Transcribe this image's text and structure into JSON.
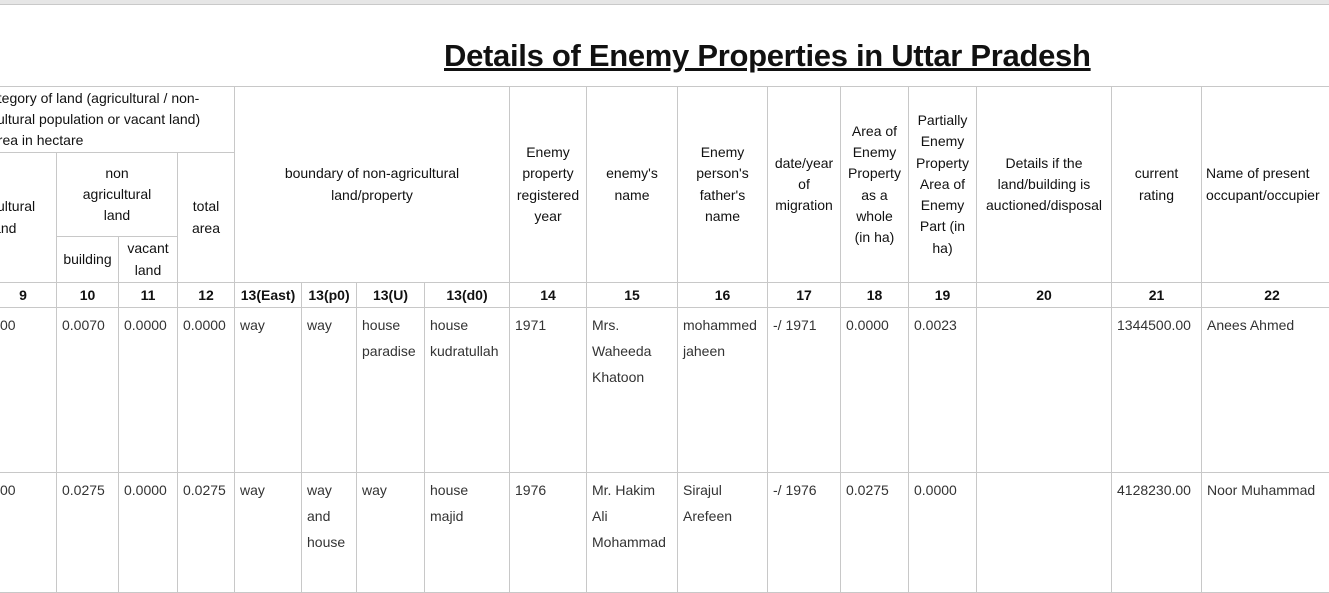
{
  "title": "Details of Enemy Properties in Uttar Pradesh",
  "headers": {
    "category": "ategory of land (agricultural / non-\ncultural population or vacant land)\narea in hectare",
    "agricultural_land": "cultural\nland",
    "non_agricultural_land": "non\nagricultural\nland",
    "building": "building",
    "vacant_land": "vacant\nland",
    "total_area": "total\narea",
    "boundary": "boundary of non-agricultural\nland/property",
    "registered_year": "Enemy\nproperty\nregistered\nyear",
    "enemy_name": "enemy's\nname",
    "father_name": "Enemy\nperson's\nfather's\nname",
    "migration": "date/year\nof\nmigration",
    "area_whole": "Area of\nEnemy\nProperty\nas a\nwhole\n(in ha)",
    "partial_area": "Partially\nEnemy\nProperty\nArea of\nEnemy\nPart (in\nha)",
    "auction": "Details if the\nland/building is\nauctioned/disposal",
    "rating": "current\nrating",
    "occupant": "Name of present\noccupant/occupier"
  },
  "column_numbers": [
    "9",
    "10",
    "11",
    "12",
    "13(East)",
    "13(p0)",
    "13(U)",
    "13(d0)",
    "14",
    "15",
    "16",
    "17",
    "18",
    "19",
    "20",
    "21",
    "22"
  ],
  "rows": [
    {
      "agri": "00",
      "building": "0.0070",
      "vacant": "0.0000",
      "total": "0.0000",
      "east": "way",
      "p0": "way",
      "u": "house\nparadise",
      "d0": "house\nkudratullah",
      "year": "1971",
      "enemy": "Mrs.\nWaheeda\nKhatoon",
      "father": "mohammed\njaheen",
      "migration": "-/ 1971",
      "area": "0.0000",
      "partial": "0.0023",
      "auction": "",
      "rating": "1344500.00",
      "occupant": "Anees Ahmed"
    },
    {
      "agri": "00",
      "building": "0.0275",
      "vacant": "0.0000",
      "total": "0.0275",
      "east": "way",
      "p0": "way\nand\nhouse",
      "u": "way",
      "d0": "house\nmajid",
      "year": "1976",
      "enemy": "Mr. Hakim\nAli\nMohammad",
      "father": "Sirajul\nArefeen",
      "migration": "-/ 1976",
      "area": "0.0275",
      "partial": "0.0000",
      "auction": "",
      "rating": "4128230.00",
      "occupant": "Noor Muhammad"
    }
  ]
}
